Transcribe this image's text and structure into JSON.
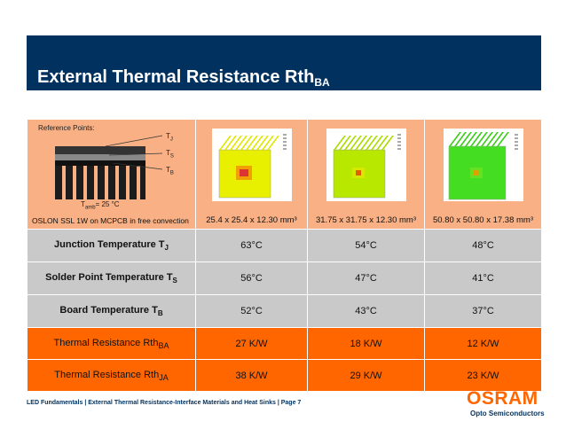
{
  "slide": {
    "title": "External Thermal Resistance Rth",
    "title_sub": "BA"
  },
  "reference": {
    "title": "Reference Points:",
    "tj": "T",
    "tj_sub": "J",
    "ts": "T",
    "ts_sub": "S",
    "tb": "T",
    "tb_sub": "B",
    "tamb": "T",
    "tamb_sub": "amb",
    "tamb_value": "= 25 °C",
    "caption": "OSLON SSL 1W on MCPCB in free convection"
  },
  "heatsinks": [
    {
      "size": "25.4 x 25.4 x 12.30 mm³",
      "color": "#e8f000"
    },
    {
      "size": "31.75 x 31.75 x 12.30 mm³",
      "color": "#b8e800"
    },
    {
      "size": "50.80 x 50.80 x 17.38 mm³",
      "color": "#44dd22"
    }
  ],
  "rows": [
    {
      "label": "Junction Temperature T",
      "sub": "J",
      "values": [
        "63°C",
        "54°C",
        "48°C"
      ]
    },
    {
      "label": "Solder Point Temperature T",
      "sub": "S",
      "values": [
        "56°C",
        "47°C",
        "41°C"
      ]
    },
    {
      "label": "Board Temperature T",
      "sub": "B",
      "values": [
        "52°C",
        "43°C",
        "37°C"
      ]
    },
    {
      "label": "Thermal Resistance Rth",
      "sub": "BA",
      "values": [
        "27 K/W",
        "18 K/W",
        "12 K/W"
      ]
    },
    {
      "label": "Thermal Resistance Rth",
      "sub": "JA",
      "values": [
        "38 K/W",
        "29 K/W",
        "23 K/W"
      ]
    }
  ],
  "footer": "LED Fundamentals | External Thermal Resistance-Interface Materials and Heat Sinks |  Page 7",
  "logo": {
    "name": "OSRAM",
    "sub": "Opto Semiconductors"
  }
}
